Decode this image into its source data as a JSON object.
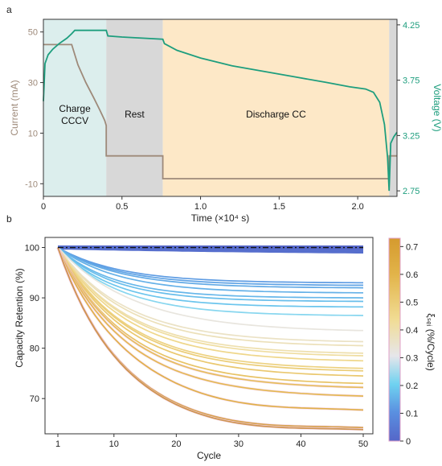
{
  "chart_data": [
    {
      "panel_label": "a",
      "type": "line",
      "xlabel": "Time (×10⁴ s)",
      "ylabel_left": "Current (mA)",
      "ylabel_right": "Voltage (V)",
      "xlim": [
        0,
        2.25
      ],
      "ylim_left": [
        -15,
        55
      ],
      "ylim_right": [
        2.7,
        4.3
      ],
      "x_ticks": [
        "0",
        "0.5",
        "1.0",
        "1.5",
        "2.0"
      ],
      "y_left_ticks": [
        "-10",
        "10",
        "30",
        "50"
      ],
      "y_right_ticks": [
        "2.75",
        "3.25",
        "3.75",
        "4.25"
      ],
      "phases": [
        {
          "label": "Charge\nCCCV",
          "start": 0.0,
          "end": 0.4,
          "color": "#dceeed"
        },
        {
          "label": "Rest",
          "start": 0.4,
          "end": 0.76,
          "color": "#d8d8d8"
        },
        {
          "label": "Discharge CC",
          "start": 0.76,
          "end": 2.2,
          "color": "#fde8c7"
        },
        {
          "label": "",
          "start": 2.2,
          "end": 2.25,
          "color": "#d8d8d8"
        }
      ],
      "series": [
        {
          "color": "#9e8a7a",
          "axis": "left",
          "x": [
            0,
            0.18,
            0.22,
            0.27,
            0.32,
            0.36,
            0.39,
            0.4,
            0.4,
            0.76,
            0.76,
            2.2,
            2.2,
            2.25
          ],
          "y": [
            45,
            45,
            37,
            30,
            24,
            19,
            15,
            13,
            1,
            1,
            -8,
            -8,
            1,
            1
          ]
        },
        {
          "color": "#1e9e7e",
          "axis": "right",
          "x": [
            0,
            0.01,
            0.03,
            0.06,
            0.1,
            0.15,
            0.18,
            0.2,
            0.4,
            0.41,
            0.5,
            0.76,
            0.77,
            0.85,
            1.0,
            1.2,
            1.4,
            1.6,
            1.8,
            1.95,
            2.05,
            2.1,
            2.14,
            2.17,
            2.19,
            2.2,
            2.21,
            2.23,
            2.25
          ],
          "y": [
            3.56,
            3.9,
            3.98,
            4.03,
            4.08,
            4.13,
            4.17,
            4.2,
            4.2,
            4.15,
            4.14,
            4.12,
            4.08,
            4.02,
            3.95,
            3.88,
            3.83,
            3.78,
            3.73,
            3.69,
            3.67,
            3.64,
            3.55,
            3.35,
            3.05,
            2.75,
            3.18,
            3.24,
            3.28
          ]
        }
      ]
    },
    {
      "panel_label": "b",
      "type": "line",
      "xlabel": "Cycle",
      "ylabel": "Capacity Retention (%)",
      "colorbar_label": "ξₛₑᵢ (%/Cycle)",
      "xlim": [
        1,
        50
      ],
      "ylim": [
        63,
        102
      ],
      "x_ticks": [
        "1",
        "10",
        "20",
        "30",
        "40",
        "50"
      ],
      "y_ticks": [
        "70",
        "80",
        "90",
        "100"
      ],
      "colorbar_ticks": [
        "0",
        "0.1",
        "0.2",
        "0.3",
        "0.4",
        "0.5",
        "0.6",
        "0.7"
      ],
      "colorbar_range": [
        0,
        0.73
      ],
      "reference_line": {
        "y": 100,
        "style": "dash-dot",
        "color": "#111111"
      },
      "curves": [
        {
          "slope": 0.0,
          "end": 100.0,
          "k": 0.02
        },
        {
          "slope": 0.02,
          "end": 99.2,
          "k": 0.02
        },
        {
          "slope": 0.12,
          "end": 93.0,
          "k": 0.1
        },
        {
          "slope": 0.13,
          "end": 92.5,
          "k": 0.1
        },
        {
          "slope": 0.14,
          "end": 92.0,
          "k": 0.1
        },
        {
          "slope": 0.15,
          "end": 91.0,
          "k": 0.1
        },
        {
          "slope": 0.16,
          "end": 90.0,
          "k": 0.11
        },
        {
          "slope": 0.17,
          "end": 89.3,
          "k": 0.11
        },
        {
          "slope": 0.18,
          "end": 88.2,
          "k": 0.11
        },
        {
          "slope": 0.22,
          "end": 86.5,
          "k": 0.1
        },
        {
          "slope": 0.32,
          "end": 83.5,
          "k": 0.08
        },
        {
          "slope": 0.36,
          "end": 81.3,
          "k": 0.09
        },
        {
          "slope": 0.38,
          "end": 80.5,
          "k": 0.09
        },
        {
          "slope": 0.4,
          "end": 79.0,
          "k": 0.09
        },
        {
          "slope": 0.42,
          "end": 78.5,
          "k": 0.09
        },
        {
          "slope": 0.46,
          "end": 77.5,
          "k": 0.09
        },
        {
          "slope": 0.48,
          "end": 76.0,
          "k": 0.09
        },
        {
          "slope": 0.5,
          "end": 75.5,
          "k": 0.09
        },
        {
          "slope": 0.52,
          "end": 74.5,
          "k": 0.09
        },
        {
          "slope": 0.54,
          "end": 73.0,
          "k": 0.09
        },
        {
          "slope": 0.56,
          "end": 72.2,
          "k": 0.09
        },
        {
          "slope": 0.58,
          "end": 70.5,
          "k": 0.09
        },
        {
          "slope": 0.61,
          "end": 67.5,
          "k": 0.09
        },
        {
          "slope": 0.66,
          "end": 64.0,
          "k": 0.1
        },
        {
          "slope": 0.7,
          "end": 63.6,
          "k": 0.1
        }
      ]
    }
  ]
}
